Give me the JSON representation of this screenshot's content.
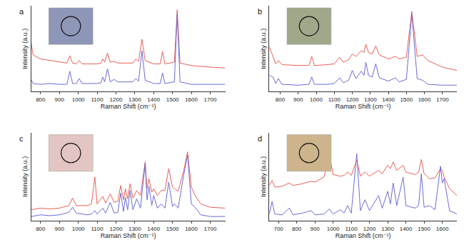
{
  "chart_data": [
    {
      "type": "line",
      "title": "a",
      "x_label": "Raman Shift (cm⁻¹)",
      "y_label": "Intensity (a.u.)",
      "x": [
        750,
        760,
        800,
        850,
        900,
        940,
        955,
        970,
        990,
        1005,
        1020,
        1100,
        1120,
        1130,
        1140,
        1155,
        1170,
        1190,
        1210,
        1250,
        1290,
        1305,
        1320,
        1338,
        1355,
        1400,
        1435,
        1447,
        1460,
        1510,
        1525,
        1540,
        1600,
        1700,
        1780
      ],
      "series": [
        {
          "color": "#e8605a",
          "values": [
            6.0,
            4.5,
            4.0,
            3.8,
            3.6,
            3.5,
            4.4,
            3.5,
            3.4,
            3.8,
            3.4,
            3.4,
            3.5,
            4.0,
            3.6,
            4.7,
            3.6,
            3.7,
            3.5,
            3.5,
            3.5,
            4.0,
            3.7,
            6.4,
            3.8,
            3.4,
            3.4,
            4.9,
            3.4,
            3.6,
            10.0,
            3.5,
            3.2,
            3.0,
            2.9
          ]
        },
        {
          "color": "#6b6bd6",
          "values": [
            1.5,
            1.0,
            0.9,
            1.0,
            0.9,
            0.9,
            2.5,
            1.0,
            1.0,
            1.6,
            1.0,
            1.0,
            1.1,
            1.8,
            1.2,
            2.8,
            1.2,
            1.5,
            1.2,
            1.2,
            1.2,
            1.6,
            1.3,
            5.0,
            1.4,
            1.0,
            1.0,
            2.3,
            1.0,
            1.2,
            9.5,
            1.2,
            0.9,
            0.9,
            0.9
          ]
        }
      ],
      "xlim": [
        750,
        1780
      ],
      "xticks": [
        800,
        900,
        1000,
        1100,
        1200,
        1300,
        1400,
        1500,
        1600,
        1700
      ],
      "ylim": [
        0,
        10.5
      ],
      "tick_labels": "x"
    },
    {
      "type": "line",
      "title": "b",
      "x_label": "Raman Shift (cm⁻¹)",
      "y_label": "Intensity (a.u.)",
      "x": [
        740,
        760,
        775,
        790,
        810,
        900,
        960,
        975,
        990,
        1060,
        1100,
        1130,
        1150,
        1180,
        1200,
        1220,
        1250,
        1265,
        1275,
        1290,
        1310,
        1330,
        1350,
        1400,
        1440,
        1460,
        1500,
        1530,
        1560,
        1590,
        1620,
        1700,
        1780
      ],
      "series": [
        {
          "color": "#e8605a",
          "values": [
            5.5,
            4.2,
            3.4,
            3.8,
            3.3,
            3.2,
            3.2,
            4.3,
            3.2,
            3.3,
            3.4,
            4.2,
            3.6,
            3.9,
            4.6,
            4.3,
            5.0,
            4.8,
            5.8,
            4.8,
            4.6,
            5.6,
            4.5,
            4.0,
            4.3,
            4.0,
            4.2,
            9.8,
            4.3,
            4.5,
            3.8,
            3.0,
            2.6
          ]
        },
        {
          "color": "#6b6bd6",
          "values": [
            2.0,
            1.8,
            1.0,
            1.6,
            0.9,
            0.8,
            0.9,
            1.8,
            0.9,
            0.9,
            1.0,
            1.7,
            1.1,
            1.4,
            2.6,
            1.6,
            2.5,
            2.0,
            3.6,
            2.0,
            1.8,
            3.4,
            1.7,
            1.3,
            1.7,
            1.2,
            1.5,
            9.5,
            1.6,
            1.4,
            0.9,
            0.8,
            0.8
          ]
        }
      ],
      "xlim": [
        740,
        1780
      ],
      "xticks": [
        800,
        900,
        1000,
        1100,
        1200,
        1300,
        1400,
        1500,
        1600,
        1700
      ],
      "ylim": [
        0,
        10.5
      ],
      "tick_labels": "x"
    },
    {
      "type": "line",
      "title": "c",
      "x_label": "Raman Shift (cm⁻¹)",
      "y_label": "Intensity (a.u.)",
      "x": [
        750,
        800,
        850,
        900,
        950,
        970,
        990,
        1050,
        1070,
        1088,
        1100,
        1130,
        1145,
        1170,
        1190,
        1210,
        1225,
        1240,
        1250,
        1262,
        1275,
        1290,
        1310,
        1330,
        1355,
        1365,
        1375,
        1390,
        1400,
        1420,
        1440,
        1460,
        1480,
        1500,
        1510,
        1530,
        1560,
        1580,
        1600,
        1620,
        1650,
        1700,
        1780
      ],
      "series": [
        {
          "color": "#e8605a",
          "values": [
            1.3,
            1.5,
            1.4,
            1.5,
            1.8,
            2.7,
            1.8,
            1.8,
            2.0,
            5.2,
            2.0,
            2.9,
            2.1,
            3.2,
            2.2,
            2.3,
            4.2,
            2.5,
            3.8,
            2.6,
            4.4,
            2.7,
            3.6,
            3.0,
            7.0,
            3.8,
            5.0,
            3.4,
            3.8,
            3.0,
            3.6,
            3.6,
            6.2,
            4.0,
            3.8,
            3.5,
            6.0,
            8.2,
            4.0,
            3.0,
            2.0,
            1.6,
            1.5
          ]
        },
        {
          "color": "#6b6bd6",
          "values": [
            0.5,
            0.7,
            0.6,
            0.7,
            1.0,
            1.6,
            0.9,
            0.7,
            0.8,
            1.2,
            0.8,
            1.5,
            0.9,
            2.2,
            0.9,
            1.0,
            3.3,
            1.1,
            2.8,
            1.3,
            3.6,
            1.3,
            2.6,
            1.5,
            6.8,
            2.5,
            4.1,
            1.8,
            3.0,
            1.5,
            2.0,
            1.5,
            4.6,
            1.7,
            2.0,
            1.5,
            5.5,
            7.8,
            2.0,
            1.6,
            0.7,
            0.5,
            0.5
          ]
        }
      ],
      "xlim": [
        750,
        1780
      ],
      "xticks": [
        800,
        900,
        1000,
        1100,
        1200,
        1300,
        1400,
        1500,
        1600,
        1700
      ],
      "ylim": [
        0,
        10.5
      ],
      "tick_labels": "x"
    },
    {
      "type": "line",
      "title": "d",
      "x_label": "Raman Shift (cm⁻¹)",
      "y_label": "Intensity (a.u.)",
      "x": [
        650,
        665,
        680,
        720,
        760,
        780,
        830,
        880,
        900,
        950,
        980,
        1000,
        1040,
        1060,
        1080,
        1100,
        1130,
        1150,
        1175,
        1200,
        1250,
        1270,
        1300,
        1315,
        1330,
        1350,
        1385,
        1400,
        1450,
        1470,
        1485,
        1500,
        1530,
        1560,
        1590,
        1600,
        1610,
        1640,
        1680
      ],
      "series": [
        {
          "color": "#e8605a",
          "values": [
            4.2,
            4.8,
            4.0,
            4.1,
            4.5,
            4.2,
            4.4,
            4.7,
            4.6,
            5.2,
            7.8,
            5.5,
            5.3,
            5.4,
            5.8,
            5.4,
            7.2,
            5.3,
            5.8,
            5.3,
            6.0,
            5.6,
            6.6,
            6.2,
            7.0,
            6.0,
            6.6,
            5.8,
            5.5,
            5.8,
            7.3,
            5.6,
            5.0,
            5.1,
            6.2,
            6.0,
            5.2,
            3.8,
            3.0
          ]
        },
        {
          "color": "#6b6bd6",
          "values": [
            0.8,
            2.3,
            0.8,
            0.7,
            1.5,
            0.7,
            0.9,
            1.2,
            0.7,
            0.8,
            1.4,
            0.8,
            1.3,
            0.9,
            1.8,
            0.9,
            8.0,
            1.2,
            2.5,
            1.2,
            3.0,
            1.5,
            3.5,
            2.0,
            4.5,
            1.8,
            5.2,
            1.8,
            1.5,
            1.8,
            5.6,
            1.6,
            1.8,
            1.3,
            6.5,
            4.5,
            5.0,
            1.2,
            0.8
          ]
        }
      ],
      "xlim": [
        650,
        1680
      ],
      "xticks": [
        700,
        800,
        900,
        1000,
        1100,
        1200,
        1300,
        1400,
        1500,
        1600
      ],
      "ylim": [
        0,
        10.5
      ],
      "tick_labels": "x"
    }
  ]
}
